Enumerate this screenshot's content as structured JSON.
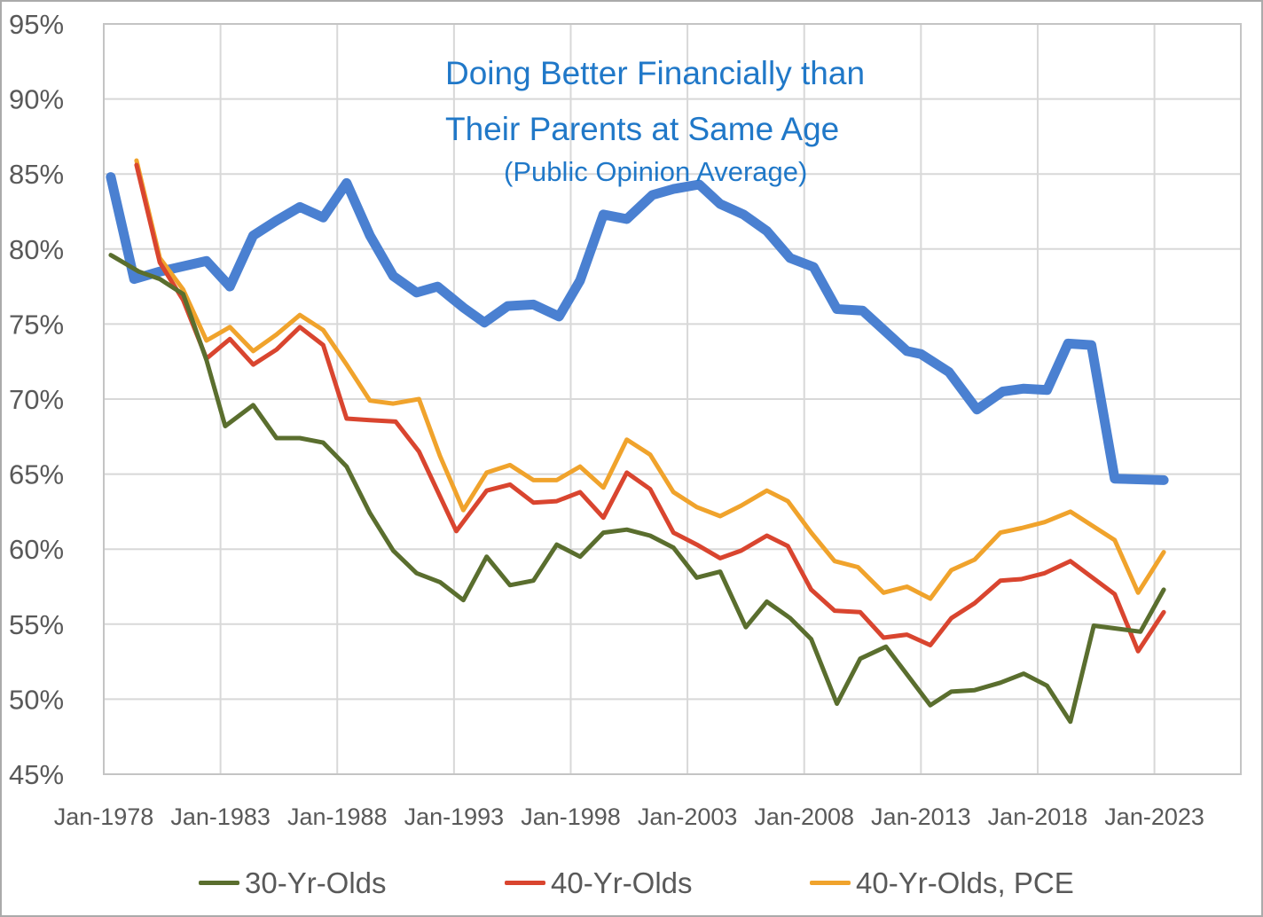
{
  "title": {
    "line1": "Doing Better Financially than",
    "line2": "Their Parents at Same Age",
    "line3": "(Public Opinion Average)",
    "color": "#2078C8"
  },
  "colors": {
    "background": "#ffffff",
    "gridline": "#d8d8d8",
    "plot_border": "#c4c4c4",
    "axis_text": "#595959",
    "blue_series": "#4a80d1",
    "green_series": "#5a6e2e",
    "red_series": "#d9452f",
    "orange_series": "#f0a32c"
  },
  "chart_data": {
    "type": "line",
    "title": "Doing Better Financially than Their Parents at Same Age",
    "subtitle": "(Public Opinion Average)",
    "grid": true,
    "legend_position": "bottom",
    "x_axis": {
      "label": "",
      "min_year": 1978,
      "max_year": 2026.7,
      "tick_years": [
        1978,
        1983,
        1988,
        1993,
        1998,
        2003,
        2008,
        2013,
        2018,
        2023
      ],
      "tick_labels": [
        "Jan-1978",
        "Jan-1983",
        "Jan-1988",
        "Jan-1993",
        "Jan-1998",
        "Jan-2003",
        "Jan-2008",
        "Jan-2013",
        "Jan-2018",
        "Jan-2023"
      ]
    },
    "y_axis": {
      "label": "",
      "min": 45,
      "max": 95,
      "step": 5,
      "tick_values": [
        95,
        90,
        85,
        80,
        75,
        70,
        65,
        60,
        55,
        50,
        45
      ],
      "tick_labels": [
        "95%",
        "90%",
        "85%",
        "80%",
        "75%",
        "70%",
        "65%",
        "60%",
        "55%",
        "50%",
        "45%"
      ]
    },
    "legend": [
      {
        "label": "30-Yr-Olds",
        "color": "#5a6e2e"
      },
      {
        "label": "40-Yr-Olds",
        "color": "#d9452f"
      },
      {
        "label": "40-Yr-Olds, PCE",
        "color": "#f0a32c"
      }
    ],
    "series": [
      {
        "name": "Public Opinion Average",
        "color": "#4a80d1",
        "width": 11,
        "in_legend": false,
        "points": [
          [
            1978.3,
            84.8
          ],
          [
            1979.3,
            78.0
          ],
          [
            1980.4,
            78.5
          ],
          [
            1982.4,
            79.2
          ],
          [
            1983.4,
            77.5
          ],
          [
            1984.4,
            80.9
          ],
          [
            1985.4,
            81.9
          ],
          [
            1986.4,
            82.8
          ],
          [
            1987.4,
            82.1
          ],
          [
            1988.4,
            84.4
          ],
          [
            1989.4,
            80.9
          ],
          [
            1990.4,
            78.2
          ],
          [
            1991.4,
            77.1
          ],
          [
            1992.3,
            77.5
          ],
          [
            1993.4,
            76.1
          ],
          [
            1994.3,
            75.1
          ],
          [
            1995.3,
            76.2
          ],
          [
            1996.4,
            76.3
          ],
          [
            1997.5,
            75.5
          ],
          [
            1998.4,
            77.9
          ],
          [
            1999.4,
            82.3
          ],
          [
            2000.4,
            82.0
          ],
          [
            2001.5,
            83.6
          ],
          [
            2002.4,
            84.0
          ],
          [
            2003.5,
            84.3
          ],
          [
            2004.4,
            83.0
          ],
          [
            2005.4,
            82.3
          ],
          [
            2006.4,
            81.2
          ],
          [
            2007.4,
            79.4
          ],
          [
            2008.4,
            78.8
          ],
          [
            2009.4,
            76.0
          ],
          [
            2010.5,
            75.9
          ],
          [
            2012.4,
            73.2
          ],
          [
            2013.0,
            73.0
          ],
          [
            2014.2,
            71.8
          ],
          [
            2015.4,
            69.3
          ],
          [
            2016.5,
            70.5
          ],
          [
            2017.4,
            70.7
          ],
          [
            2018.4,
            70.6
          ],
          [
            2019.3,
            73.7
          ],
          [
            2020.3,
            73.6
          ],
          [
            2021.3,
            64.7
          ],
          [
            2023.4,
            64.6
          ]
        ]
      },
      {
        "name": "40-Yr-Olds, PCE",
        "color": "#f0a32c",
        "width": 5,
        "in_legend": true,
        "points": [
          [
            1979.4,
            85.9
          ],
          [
            1980.4,
            79.4
          ],
          [
            1981.4,
            77.3
          ],
          [
            1982.4,
            73.9
          ],
          [
            1983.4,
            74.8
          ],
          [
            1984.4,
            73.2
          ],
          [
            1985.4,
            74.3
          ],
          [
            1986.4,
            75.6
          ],
          [
            1987.4,
            74.6
          ],
          [
            1988.4,
            72.3
          ],
          [
            1989.4,
            69.9
          ],
          [
            1990.4,
            69.7
          ],
          [
            1991.5,
            70.0
          ],
          [
            1992.4,
            66.2
          ],
          [
            1993.4,
            62.6
          ],
          [
            1994.4,
            65.1
          ],
          [
            1995.4,
            65.6
          ],
          [
            1996.4,
            64.6
          ],
          [
            1997.4,
            64.6
          ],
          [
            1998.4,
            65.5
          ],
          [
            1999.4,
            64.1
          ],
          [
            2000.4,
            67.3
          ],
          [
            2001.4,
            66.3
          ],
          [
            2002.4,
            63.8
          ],
          [
            2003.4,
            62.8
          ],
          [
            2004.4,
            62.2
          ],
          [
            2005.3,
            62.9
          ],
          [
            2006.4,
            63.9
          ],
          [
            2007.3,
            63.2
          ],
          [
            2008.3,
            61.1
          ],
          [
            2009.3,
            59.2
          ],
          [
            2010.3,
            58.8
          ],
          [
            2011.4,
            57.1
          ],
          [
            2012.4,
            57.5
          ],
          [
            2013.4,
            56.7
          ],
          [
            2014.3,
            58.6
          ],
          [
            2015.3,
            59.3
          ],
          [
            2016.4,
            61.1
          ],
          [
            2017.3,
            61.4
          ],
          [
            2018.3,
            61.8
          ],
          [
            2019.4,
            62.5
          ],
          [
            2021.3,
            60.6
          ],
          [
            2022.3,
            57.1
          ],
          [
            2023.4,
            59.8
          ]
        ]
      },
      {
        "name": "40-Yr-Olds",
        "color": "#d9452f",
        "width": 5,
        "in_legend": true,
        "points": [
          [
            1979.4,
            85.6
          ],
          [
            1980.4,
            79.1
          ],
          [
            1981.4,
            76.6
          ],
          [
            1982.4,
            72.7
          ],
          [
            1983.4,
            74.0
          ],
          [
            1984.4,
            72.3
          ],
          [
            1985.4,
            73.3
          ],
          [
            1986.4,
            74.8
          ],
          [
            1987.4,
            73.6
          ],
          [
            1988.4,
            68.7
          ],
          [
            1989.4,
            68.6
          ],
          [
            1990.5,
            68.5
          ],
          [
            1991.5,
            66.5
          ],
          [
            1993.1,
            61.2
          ],
          [
            1994.4,
            63.9
          ],
          [
            1995.4,
            64.3
          ],
          [
            1996.4,
            63.1
          ],
          [
            1997.4,
            63.2
          ],
          [
            1998.4,
            63.8
          ],
          [
            1999.4,
            62.1
          ],
          [
            2000.4,
            65.1
          ],
          [
            2001.4,
            64.0
          ],
          [
            2002.4,
            61.1
          ],
          [
            2003.4,
            60.3
          ],
          [
            2004.4,
            59.4
          ],
          [
            2005.3,
            59.9
          ],
          [
            2006.4,
            60.9
          ],
          [
            2007.3,
            60.2
          ],
          [
            2008.3,
            57.3
          ],
          [
            2009.3,
            55.9
          ],
          [
            2010.4,
            55.8
          ],
          [
            2011.4,
            54.1
          ],
          [
            2012.4,
            54.3
          ],
          [
            2013.4,
            53.6
          ],
          [
            2014.3,
            55.4
          ],
          [
            2015.3,
            56.4
          ],
          [
            2016.4,
            57.9
          ],
          [
            2017.3,
            58.0
          ],
          [
            2018.3,
            58.4
          ],
          [
            2019.4,
            59.2
          ],
          [
            2021.3,
            57.0
          ],
          [
            2022.3,
            53.2
          ],
          [
            2023.4,
            55.8
          ]
        ]
      },
      {
        "name": "30-Yr-Olds",
        "color": "#5a6e2e",
        "width": 5,
        "in_legend": true,
        "points": [
          [
            1978.3,
            79.6
          ],
          [
            1979.5,
            78.5
          ],
          [
            1980.4,
            78.0
          ],
          [
            1981.4,
            77.0
          ],
          [
            1982.4,
            72.6
          ],
          [
            1983.2,
            68.2
          ],
          [
            1984.4,
            69.6
          ],
          [
            1985.4,
            67.4
          ],
          [
            1986.4,
            67.4
          ],
          [
            1987.4,
            67.1
          ],
          [
            1988.4,
            65.5
          ],
          [
            1989.4,
            62.4
          ],
          [
            1990.4,
            59.9
          ],
          [
            1991.4,
            58.4
          ],
          [
            1992.4,
            57.8
          ],
          [
            1993.4,
            56.6
          ],
          [
            1994.4,
            59.5
          ],
          [
            1995.4,
            57.6
          ],
          [
            1996.4,
            57.9
          ],
          [
            1997.4,
            60.3
          ],
          [
            1998.4,
            59.5
          ],
          [
            1999.4,
            61.1
          ],
          [
            2000.4,
            61.3
          ],
          [
            2001.4,
            60.9
          ],
          [
            2002.4,
            60.1
          ],
          [
            2003.4,
            58.1
          ],
          [
            2004.4,
            58.5
          ],
          [
            2005.5,
            54.8
          ],
          [
            2006.4,
            56.5
          ],
          [
            2007.4,
            55.4
          ],
          [
            2008.3,
            54.0
          ],
          [
            2009.4,
            49.7
          ],
          [
            2010.4,
            52.7
          ],
          [
            2011.5,
            53.5
          ],
          [
            2013.4,
            49.6
          ],
          [
            2014.3,
            50.5
          ],
          [
            2015.3,
            50.6
          ],
          [
            2016.4,
            51.1
          ],
          [
            2017.4,
            51.7
          ],
          [
            2018.4,
            50.9
          ],
          [
            2019.4,
            48.5
          ],
          [
            2020.4,
            54.9
          ],
          [
            2021.4,
            54.7
          ],
          [
            2022.4,
            54.5
          ],
          [
            2023.4,
            57.3
          ]
        ]
      }
    ]
  }
}
